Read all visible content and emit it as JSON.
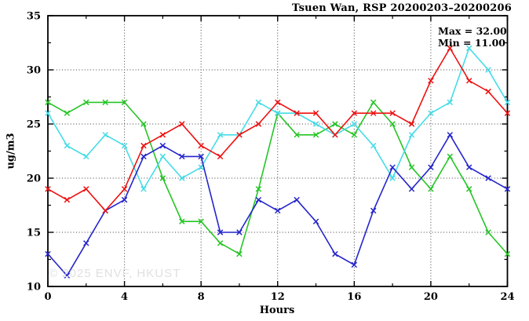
{
  "header": {
    "title": "Tsuen Wan, RSP 20200203–20200206"
  },
  "annotations": {
    "max_label": "Max = 32.00",
    "min_label": "Min = 11.00",
    "watermark": "© 2025 ENVF, HKUST"
  },
  "chart_data": {
    "type": "line",
    "title": "Tsuen Wan, RSP 20200203–20200206",
    "xlabel": "Hours",
    "ylabel": "ug/m3",
    "xlim": [
      0,
      24
    ],
    "ylim": [
      10,
      35
    ],
    "xticks": [
      0,
      4,
      8,
      12,
      16,
      20,
      24
    ],
    "yticks": [
      10,
      15,
      20,
      25,
      30,
      35
    ],
    "x_minor_step": 2,
    "y_minor_step": 2.5,
    "grid": true,
    "legend": false,
    "max": 32.0,
    "min": 11.0,
    "x": [
      0,
      1,
      2,
      3,
      4,
      5,
      6,
      7,
      8,
      9,
      10,
      11,
      12,
      13,
      14,
      15,
      16,
      17,
      18,
      19,
      20,
      21,
      22,
      23,
      24
    ],
    "series": [
      {
        "name": "green",
        "color": "#25c525",
        "values": [
          27,
          26,
          27,
          27,
          27,
          25,
          20,
          16,
          16,
          14,
          13,
          19,
          26,
          24,
          24,
          25,
          24,
          27,
          25,
          21,
          19,
          22,
          19,
          15,
          13
        ]
      },
      {
        "name": "cyan",
        "color": "#45dce6",
        "values": [
          26,
          23,
          22,
          24,
          23,
          19,
          22,
          20,
          21,
          24,
          24,
          27,
          26,
          26,
          25,
          24,
          25,
          23,
          20,
          24,
          26,
          27,
          32,
          30,
          27
        ]
      },
      {
        "name": "blue",
        "color": "#2525cc",
        "values": [
          13,
          11,
          14,
          17,
          18,
          22,
          23,
          22,
          22,
          15,
          15,
          18,
          17,
          18,
          16,
          13,
          12,
          17,
          21,
          19,
          21,
          24,
          21,
          20,
          19
        ]
      },
      {
        "name": "red",
        "color": "#ee1111",
        "values": [
          19,
          18,
          19,
          17,
          19,
          23,
          24,
          25,
          23,
          22,
          24,
          25,
          27,
          26,
          26,
          24,
          26,
          26,
          26,
          25,
          29,
          32,
          29,
          28,
          26
        ]
      }
    ]
  }
}
